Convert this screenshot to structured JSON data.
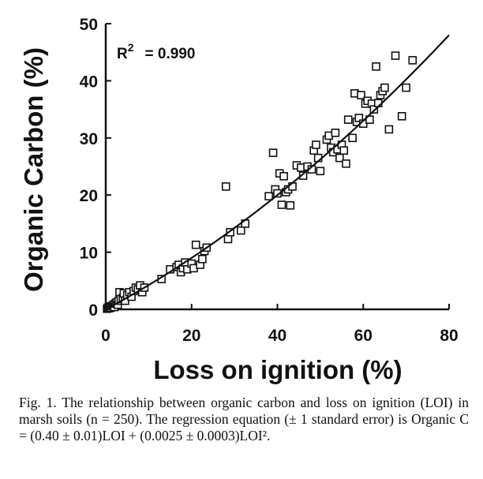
{
  "chart_data": {
    "type": "scatter",
    "title": "",
    "xlabel": "Loss on ignition (%)",
    "ylabel": "Organic Carbon (%)",
    "xlim": [
      0,
      80
    ],
    "ylim": [
      0,
      50
    ],
    "xticks": [
      0,
      20,
      40,
      60,
      80
    ],
    "yticks": [
      0,
      10,
      20,
      30,
      40,
      50
    ],
    "grid": false,
    "annotation": {
      "label": "R",
      "superscript": "2",
      "text": "= 0.990"
    },
    "series": [
      {
        "marker": "open-square",
        "points": [
          [
            0.3,
            0.1
          ],
          [
            0.5,
            0.3
          ],
          [
            0.8,
            0.2
          ],
          [
            1.0,
            0.5
          ],
          [
            1.2,
            0.3
          ],
          [
            1.5,
            0.6
          ],
          [
            1.8,
            0.8
          ],
          [
            2.0,
            0.4
          ],
          [
            2.2,
            1.0
          ],
          [
            2.5,
            1.2
          ],
          [
            2.8,
            0.8
          ],
          [
            3.0,
            1.5
          ],
          [
            3.2,
            3.0
          ],
          [
            3.5,
            1.8
          ],
          [
            4.0,
            2.0
          ],
          [
            4.2,
            2.8
          ],
          [
            4.5,
            1.5
          ],
          [
            5.0,
            2.5
          ],
          [
            5.5,
            3.0
          ],
          [
            6.0,
            2.2
          ],
          [
            6.5,
            3.2
          ],
          [
            7.0,
            3.8
          ],
          [
            7.5,
            3.5
          ],
          [
            8.0,
            4.2
          ],
          [
            8.5,
            3.0
          ],
          [
            9.0,
            3.8
          ],
          [
            13.0,
            5.3
          ],
          [
            15.0,
            7.0
          ],
          [
            16.5,
            7.4
          ],
          [
            17.0,
            7.8
          ],
          [
            17.5,
            6.5
          ],
          [
            18.0,
            7.2
          ],
          [
            18.5,
            8.2
          ],
          [
            19.0,
            7.0
          ],
          [
            20.0,
            8.0
          ],
          [
            20.5,
            7.2
          ],
          [
            21.0,
            11.3
          ],
          [
            22.0,
            7.8
          ],
          [
            22.5,
            8.8
          ],
          [
            23.0,
            10.2
          ],
          [
            23.5,
            10.8
          ],
          [
            28.0,
            21.5
          ],
          [
            28.5,
            12.3
          ],
          [
            29.0,
            13.5
          ],
          [
            31.5,
            13.8
          ],
          [
            32.5,
            15.0
          ],
          [
            38.0,
            19.8
          ],
          [
            39.0,
            27.4
          ],
          [
            39.5,
            21.0
          ],
          [
            40.0,
            20.3
          ],
          [
            40.5,
            23.8
          ],
          [
            41.0,
            18.3
          ],
          [
            41.5,
            23.3
          ],
          [
            42.0,
            20.5
          ],
          [
            42.5,
            21.0
          ],
          [
            43.0,
            18.2
          ],
          [
            43.5,
            21.5
          ],
          [
            44.5,
            25.2
          ],
          [
            45.5,
            24.8
          ],
          [
            46.0,
            23.4
          ],
          [
            47.0,
            25.0
          ],
          [
            48.0,
            24.5
          ],
          [
            48.5,
            27.8
          ],
          [
            49.0,
            28.8
          ],
          [
            49.5,
            26.5
          ],
          [
            50.0,
            24.2
          ],
          [
            51.5,
            29.7
          ],
          [
            52.0,
            30.4
          ],
          [
            52.5,
            28.3
          ],
          [
            53.0,
            27.5
          ],
          [
            53.5,
            30.9
          ],
          [
            54.0,
            28.0
          ],
          [
            54.5,
            26.5
          ],
          [
            55.0,
            28.8
          ],
          [
            55.5,
            27.8
          ],
          [
            56.0,
            25.5
          ],
          [
            56.5,
            33.2
          ],
          [
            57.5,
            30.0
          ],
          [
            58.0,
            37.8
          ],
          [
            58.5,
            32.8
          ],
          [
            59.0,
            33.5
          ],
          [
            59.5,
            37.5
          ],
          [
            60.0,
            32.5
          ],
          [
            60.5,
            36.0
          ],
          [
            61.0,
            36.5
          ],
          [
            61.5,
            33.2
          ],
          [
            62.0,
            36.0
          ],
          [
            62.5,
            35.0
          ],
          [
            63.0,
            42.5
          ],
          [
            63.5,
            36.1
          ],
          [
            64.0,
            37.5
          ],
          [
            64.5,
            38.2
          ],
          [
            65.0,
            38.8
          ],
          [
            66.0,
            31.5
          ],
          [
            67.5,
            44.4
          ],
          [
            69.0,
            33.8
          ],
          [
            70.0,
            38.8
          ],
          [
            71.5,
            43.6
          ]
        ]
      }
    ],
    "fit": {
      "type": "quadratic",
      "coefficients": {
        "a1": 0.4,
        "a2": 0.0025
      },
      "x_range": [
        0,
        80
      ]
    }
  },
  "caption": {
    "label": "Fig. 1.",
    "text": "The relationship between organic carbon and loss on ignition (LOI) in marsh soils (n = 250). The regression equation (± 1 standard error) is Organic C = (0.40 ± 0.01)LOI + (0.0025 ± 0.0003)LOI².",
    "spacer": " "
  }
}
